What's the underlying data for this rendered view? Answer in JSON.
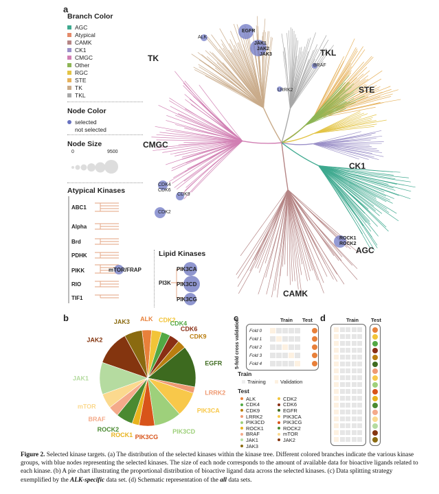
{
  "panels": {
    "a": "a",
    "b": "b",
    "c": "c",
    "d": "d"
  },
  "branch_legend": {
    "title": "Branch Color",
    "items": [
      {
        "label": "AGC",
        "color": "#3ea98f"
      },
      {
        "label": "Atypical",
        "color": "#e48a6a"
      },
      {
        "label": "CAMK",
        "color": "#b58585"
      },
      {
        "label": "CK1",
        "color": "#9b90c8"
      },
      {
        "label": "CMGC",
        "color": "#d17fb3"
      },
      {
        "label": "Other",
        "color": "#8db555"
      },
      {
        "label": "RGC",
        "color": "#e3c445"
      },
      {
        "label": "STE",
        "color": "#e6b15a"
      },
      {
        "label": "TK",
        "color": "#c9ab8a"
      },
      {
        "label": "TKL",
        "color": "#a8a8a8"
      }
    ]
  },
  "node_color_legend": {
    "title": "Node Color",
    "selected": "selected",
    "not_selected": "not selected"
  },
  "node_size_legend": {
    "title": "Node Size",
    "min": "0",
    "max": "9500"
  },
  "atypical": {
    "title": "Atypical Kinases",
    "items": [
      "ABC1",
      "Alpha",
      "Brd",
      "PDHK",
      "PIKK",
      "RIO",
      "TIF1"
    ],
    "pikk_node": "mTOR/FRAP"
  },
  "lipid": {
    "title": "Lipid Kinases",
    "group": "PI3K",
    "nodes": [
      "PIK3CA",
      "PIK3CD",
      "PIK3CG"
    ]
  },
  "tree_groups": [
    "TK",
    "TKL",
    "STE",
    "CK1",
    "AGC",
    "CAMK",
    "CMGC"
  ],
  "tree_nodes": {
    "alk": "ALK",
    "egfr": "EGFR",
    "jak1": "JAK1",
    "jak2": "JAK2",
    "jak3": "JAK3",
    "braf": "BRAF",
    "lrrk2": "LRRK2",
    "cdk4": "CDK4",
    "cdk6": "CDK6",
    "cdk9": "CDK9",
    "cdk2": "CDK2",
    "rock1": "ROCK1",
    "rock2": "ROCK2"
  },
  "chart_data": {
    "type": "pie",
    "slices": [
      {
        "label": "ALK",
        "value": 3.2,
        "color": "#e8803a"
      },
      {
        "label": "CDK2",
        "value": 3.4,
        "color": "#f2c438"
      },
      {
        "label": "CDK4",
        "value": 3.0,
        "color": "#52a844"
      },
      {
        "label": "CDK6",
        "value": 3.4,
        "color": "#8a2f14"
      },
      {
        "label": "CDK9",
        "value": 2.9,
        "color": "#ba7e10"
      },
      {
        "label": "EGFR",
        "value": 14.0,
        "color": "#3d6a1f"
      },
      {
        "label": "LRRK2",
        "value": 2.1,
        "color": "#ef9a72"
      },
      {
        "label": "PIK3CA",
        "value": 8.4,
        "color": "#f8c84a"
      },
      {
        "label": "PIK3CD",
        "value": 9.2,
        "color": "#9ed07b"
      },
      {
        "label": "PIK3CG",
        "value": 5.2,
        "color": "#d8541a"
      },
      {
        "label": "ROCK1",
        "value": 2.4,
        "color": "#e8b31e"
      },
      {
        "label": "ROCK2",
        "value": 5.6,
        "color": "#4a8a31"
      },
      {
        "label": "BRAF",
        "value": 3.6,
        "color": "#f4aa8a"
      },
      {
        "label": "mTOR",
        "value": 5.0,
        "color": "#fbd98e"
      },
      {
        "label": "JAK1",
        "value": 10.8,
        "color": "#b5dba0"
      },
      {
        "label": "JAK2",
        "value": 11.8,
        "color": "#84350f"
      },
      {
        "label": "JAK3",
        "value": 6.0,
        "color": "#8a6a10"
      }
    ]
  },
  "split": {
    "train": "Train",
    "test": "Test",
    "cv_label": "5-fold cross validation",
    "folds": [
      "Fold 0",
      "Fold 1",
      "Fold 2",
      "Fold 3",
      "Fold 4"
    ],
    "legend_train_title": "Train",
    "training": "Training",
    "validation": "Validation",
    "legend_test_title": "Test",
    "test_col1": [
      {
        "label": "ALK",
        "color": "#e8803a"
      },
      {
        "label": "CDK4",
        "color": "#52a844"
      },
      {
        "label": "CDK9",
        "color": "#ba7e10"
      },
      {
        "label": "LRRK2",
        "color": "#ef9a72"
      },
      {
        "label": "PIK3CD",
        "color": "#9ed07b"
      },
      {
        "label": "ROCK1",
        "color": "#e8b31e"
      },
      {
        "label": "BRAF",
        "color": "#f4aa8a"
      },
      {
        "label": "JAK1",
        "color": "#b5dba0"
      },
      {
        "label": "JAK3",
        "color": "#8a6a10"
      }
    ],
    "test_col2": [
      {
        "label": "CDK2",
        "color": "#f2c438"
      },
      {
        "label": "CDK6",
        "color": "#8a2f14"
      },
      {
        "label": "EGFR",
        "color": "#3d6a1f"
      },
      {
        "label": "PIK3CA",
        "color": "#f8c84a"
      },
      {
        "label": "PIK3CG",
        "color": "#d8541a"
      },
      {
        "label": "ROCK2",
        "color": "#4a8a31"
      },
      {
        "label": "mTOR",
        "color": "#fbd98e"
      },
      {
        "label": "JAK2",
        "color": "#84350f"
      }
    ]
  },
  "panel_d": {
    "train": "Train",
    "test": "Test",
    "dots": [
      "#e8803a",
      "#f2c438",
      "#52a844",
      "#8a2f14",
      "#ba7e10",
      "#3d6a1f",
      "#ef9a72",
      "#f8c84a",
      "#9ed07b",
      "#d8541a",
      "#e8b31e",
      "#4a8a31",
      "#f4aa8a",
      "#fbd98e",
      "#b5dba0",
      "#84350f",
      "#8a6a10"
    ]
  },
  "caption": {
    "figure": "Figure 2.",
    "t1": " Selected kinase targets. (a) The distribution of the selected kinases within the kinase tree. Different colored branches indicate the various kinase groups, with blue nodes representing the selected kinases. The size of each node corresponds to the amount of available data for bioactive ligands related to each kinase. (b) A pie chart illustrating the proportional distribution of bioactive ligand data across the selected kinases. (c) Data splitting strategy exemplified by the ",
    "b1": "ALK-specific",
    "t2": " data set. (d) Schematic representation of the ",
    "b2": "all",
    "t3": " data sets."
  }
}
